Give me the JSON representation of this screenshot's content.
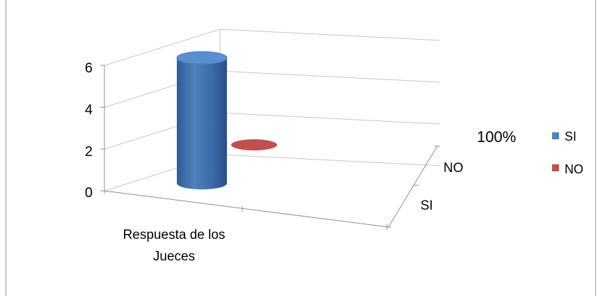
{
  "chart_data": {
    "type": "bar",
    "categories": [
      "Respuesta de los Jueces"
    ],
    "depth_categories": [
      "SI",
      "NO"
    ],
    "series": [
      {
        "name": "SI",
        "values": [
          6
        ],
        "color": "#4f81bd"
      },
      {
        "name": "NO",
        "values": [
          0
        ],
        "color": "#c0504d"
      }
    ],
    "ylim": [
      0,
      6
    ],
    "yticks": [
      "0",
      "2",
      "4",
      "6"
    ],
    "category_label_lines": [
      "Respuesta de los",
      "Jueces"
    ],
    "annotation": "100%",
    "grid": true,
    "legend_position": "right",
    "style": "3d-cylinder"
  }
}
